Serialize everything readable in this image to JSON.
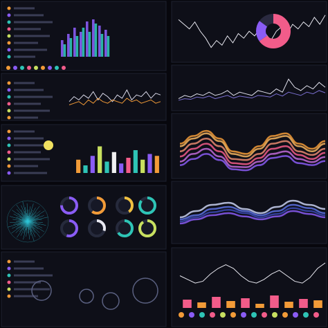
{
  "charts": [
    {
      "type": "bar",
      "ylim": [
        0,
        100
      ],
      "series": [
        {
          "color": "#8a5cf5",
          "values": [
            40,
            55,
            70,
            60,
            85,
            90,
            75,
            65
          ]
        },
        {
          "color": "#2ec4b6",
          "values": [
            30,
            45,
            50,
            70,
            60,
            80,
            55,
            50
          ]
        }
      ]
    },
    {
      "type": "line",
      "ylim": [
        0,
        100
      ],
      "series": [
        {
          "color": "#e8e8f0",
          "values": [
            80,
            70,
            60,
            75,
            55,
            40,
            20,
            35,
            25,
            45,
            30,
            50,
            40,
            55,
            45,
            60,
            50,
            35,
            55,
            65,
            50,
            70,
            60,
            75,
            65,
            85,
            70,
            90
          ]
        }
      ]
    },
    {
      "type": "line",
      "ylim": [
        0,
        100
      ],
      "series": [
        {
          "color": "#d8d8e8",
          "values": [
            40,
            55,
            45,
            60,
            50,
            70,
            45,
            65,
            55,
            40,
            60,
            50,
            75,
            45,
            60,
            55,
            70,
            50,
            65,
            60
          ]
        },
        {
          "color": "#f29b38",
          "values": [
            30,
            35,
            40,
            30,
            45,
            35,
            50,
            40,
            35,
            45,
            40,
            35,
            50,
            40,
            45,
            35,
            40,
            45,
            35,
            40
          ]
        }
      ]
    },
    {
      "type": "line",
      "ylim": [
        0,
        100
      ],
      "series": [
        {
          "color": "#e0e0ec",
          "values": [
            20,
            30,
            25,
            35,
            30,
            40,
            30,
            35,
            45,
            30,
            40,
            35,
            30,
            45,
            40,
            35,
            50,
            40,
            80,
            55,
            45,
            60,
            50,
            70,
            55
          ]
        },
        {
          "color": "#7a6fd0",
          "values": [
            15,
            20,
            18,
            25,
            22,
            28,
            20,
            25,
            30,
            22,
            28,
            25,
            22,
            30,
            28,
            25,
            35,
            28,
            40,
            35,
            30,
            40,
            35,
            45,
            38
          ]
        }
      ]
    },
    {
      "type": "bar",
      "ylim": [
        0,
        100
      ],
      "colors": [
        "#f29b38",
        "#2ec4b6",
        "#8a5cf5",
        "#c8e060",
        "#2ec4b6",
        "#f0f0f0",
        "#8a5cf5",
        "#f25c8a",
        "#2ec4b6",
        "#c8e060",
        "#8a5cf5",
        "#f29b38"
      ],
      "values": [
        35,
        20,
        45,
        70,
        30,
        55,
        25,
        40,
        60,
        35,
        50,
        45
      ]
    },
    {
      "type": "wave",
      "ylim": [
        0,
        100
      ],
      "series": [
        {
          "color": "#f29b38",
          "values": [
            60,
            75,
            85,
            70,
            45,
            40,
            55,
            75,
            80,
            60,
            50,
            65
          ]
        },
        {
          "color": "#f5b560",
          "values": [
            55,
            70,
            80,
            65,
            40,
            35,
            50,
            70,
            75,
            55,
            45,
            60
          ]
        },
        {
          "color": "#e88a70",
          "values": [
            45,
            60,
            70,
            55,
            30,
            28,
            40,
            60,
            65,
            45,
            38,
            50
          ]
        },
        {
          "color": "#f25c8a",
          "values": [
            35,
            50,
            60,
            45,
            22,
            20,
            32,
            50,
            55,
            38,
            30,
            42
          ]
        },
        {
          "color": "#c06ad8",
          "values": [
            25,
            40,
            50,
            35,
            15,
            14,
            25,
            40,
            45,
            30,
            24,
            34
          ]
        },
        {
          "color": "#8a5cf5",
          "values": [
            18,
            30,
            40,
            28,
            10,
            8,
            18,
            32,
            36,
            22,
            18,
            26
          ]
        }
      ]
    },
    {
      "type": "wave",
      "ylim": [
        0,
        100
      ],
      "series": [
        {
          "color": "#c8d0f0",
          "values": [
            40,
            55,
            70,
            75,
            60,
            50,
            65,
            80,
            70,
            60
          ]
        },
        {
          "color": "#5a70e0",
          "values": [
            35,
            45,
            60,
            65,
            55,
            45,
            55,
            70,
            62,
            50
          ]
        },
        {
          "color": "#3a48b0",
          "values": [
            30,
            40,
            52,
            58,
            50,
            40,
            48,
            62,
            55,
            45
          ]
        },
        {
          "color": "#8a5cf5",
          "values": [
            25,
            35,
            45,
            50,
            42,
            35,
            42,
            55,
            48,
            40
          ]
        }
      ]
    },
    {
      "type": "line",
      "ylim": [
        0,
        100
      ],
      "series": [
        {
          "color": "#e8e8f0",
          "values": [
            50,
            40,
            30,
            35,
            55,
            70,
            80,
            70,
            50,
            35,
            30,
            40,
            55,
            65,
            50,
            35,
            30,
            45,
            70,
            85
          ]
        }
      ]
    },
    {
      "type": "pie",
      "values": [
        65,
        20,
        15
      ],
      "colors": [
        "#f25c8a",
        "#8a5cf5",
        "#2a2a40"
      ]
    },
    {
      "type": "gauge",
      "values": [
        75,
        60,
        40,
        85,
        55,
        30,
        65,
        90
      ],
      "colors": [
        "#8a5cf5",
        "#f29b38",
        "#f0c040",
        "#2ec4b6",
        "#8a5cf5",
        "#e8e8f0",
        "#2ec4b6",
        "#c8e060"
      ]
    },
    {
      "type": "bar",
      "ylim": [
        0,
        100
      ],
      "colors": [
        "#f25c8a",
        "#f29b38",
        "#f25c8a",
        "#f29b38",
        "#f25c8a",
        "#f29b38",
        "#f25c8a",
        "#f29b38",
        "#f25c8a",
        "#f29b38"
      ],
      "values": [
        60,
        40,
        80,
        50,
        70,
        30,
        90,
        45,
        65,
        55
      ]
    }
  ]
}
